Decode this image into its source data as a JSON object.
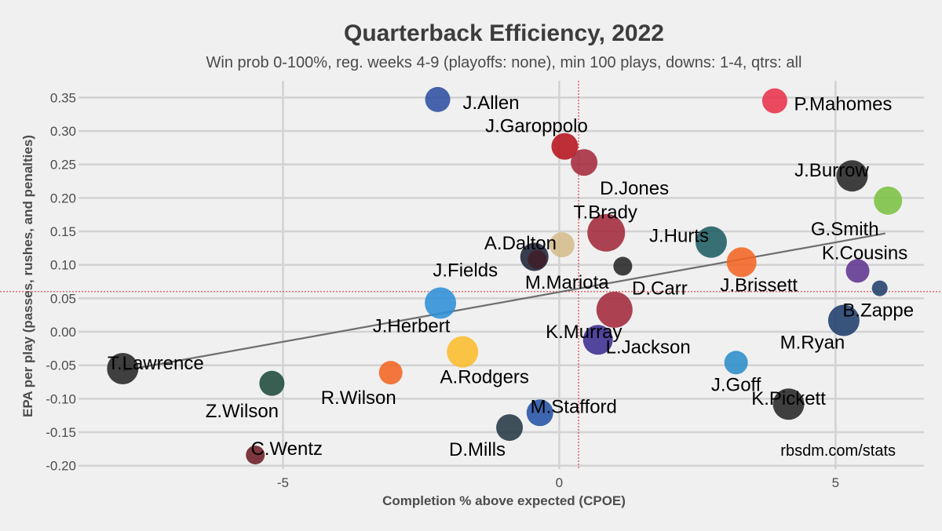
{
  "chart_data": {
    "type": "scatter",
    "title": "Quarterback Efficiency, 2022",
    "subtitle": "Win prob 0-100%, reg. weeks 4-9 (playoffs: none), min 100 plays, downs: 1-4, qtrs: all",
    "xlabel": "Completion % above expected (CPOE)",
    "ylabel": "EPA per play (passes, rushes, and penalties)",
    "credit": "rbsdm.com/stats",
    "xlim": [
      -8.7,
      6.6
    ],
    "ylim": [
      -0.205,
      0.375
    ],
    "x_ticks": [
      -5,
      0,
      5
    ],
    "x_tick_labels": [
      "-5",
      "0",
      "5"
    ],
    "y_ticks": [
      -0.2,
      -0.15,
      -0.1,
      -0.05,
      0.0,
      0.05,
      0.1,
      0.15,
      0.2,
      0.25,
      0.3,
      0.35
    ],
    "y_tick_labels": [
      "-0.20",
      "-0.15",
      "-0.10",
      "-0.05",
      "0.00",
      "0.05",
      "0.10",
      "0.15",
      "0.20",
      "0.25",
      "0.30",
      "0.35"
    ],
    "grid": true,
    "mean_x": 0.35,
    "mean_y": 0.06,
    "trendline": {
      "x": [
        -7.9,
        5.9
      ],
      "y": [
        -0.058,
        0.147
      ]
    },
    "points": [
      {
        "name": "J.Allen",
        "x": -2.2,
        "y": 0.347,
        "r": 16,
        "color": "#2d4ea1"
      },
      {
        "name": "P.Mahomes",
        "x": 3.9,
        "y": 0.345,
        "r": 16,
        "color": "#e8314b"
      },
      {
        "name": "J.Garoppolo",
        "x": 0.1,
        "y": 0.277,
        "r": 17,
        "color": "#b5121b"
      },
      {
        "name": "D.Jones",
        "x": 0.45,
        "y": 0.253,
        "r": 17,
        "color": "#a52a3d"
      },
      {
        "name": "J.Burrow",
        "x": 5.3,
        "y": 0.233,
        "r": 20,
        "color": "#262626"
      },
      {
        "name": "G.Smith",
        "x": 5.95,
        "y": 0.196,
        "r": 18,
        "color": "#7bc043"
      },
      {
        "name": "T.Brady",
        "x": 0.85,
        "y": 0.148,
        "r": 24,
        "color": "#a0283a"
      },
      {
        "name": "J.Hurts",
        "x": 2.75,
        "y": 0.134,
        "r": 20,
        "color": "#1e5c63"
      },
      {
        "name": "A.Dalton",
        "x": 0.05,
        "y": 0.13,
        "r": 16,
        "color": "#d4bc8c"
      },
      {
        "name": "J.Fields",
        "x": -0.45,
        "y": 0.112,
        "r": 18,
        "color": "#1e2238"
      },
      {
        "name": "M.Mariota",
        "x": -0.4,
        "y": 0.108,
        "r": 12,
        "color": "#3d1f2a"
      },
      {
        "name": "J.Brissett",
        "x": 3.3,
        "y": 0.104,
        "r": 19,
        "color": "#f26522"
      },
      {
        "name": "D.Carr",
        "x": 1.15,
        "y": 0.098,
        "r": 12,
        "color": "#262626"
      },
      {
        "name": "K.Cousins",
        "x": 5.4,
        "y": 0.091,
        "r": 15,
        "color": "#5f3390"
      },
      {
        "name": "B.Zappe",
        "x": 5.8,
        "y": 0.065,
        "r": 10,
        "color": "#21406b"
      },
      {
        "name": "J.Herbert",
        "x": -2.15,
        "y": 0.043,
        "r": 20,
        "color": "#2d8fd6"
      },
      {
        "name": "K.Murray",
        "x": 1.0,
        "y": 0.033,
        "r": 23,
        "color": "#a0283a"
      },
      {
        "name": "M.Ryan",
        "x": 5.15,
        "y": 0.017,
        "r": 20,
        "color": "#1e3d6b"
      },
      {
        "name": "L.Jackson",
        "x": 0.7,
        "y": -0.012,
        "r": 19,
        "color": "#3b2c8f"
      },
      {
        "name": "A.Rodgers",
        "x": -1.75,
        "y": -0.03,
        "r": 20,
        "color": "#fbbc2b"
      },
      {
        "name": "J.Goff",
        "x": 3.2,
        "y": -0.046,
        "r": 15,
        "color": "#2b8cc8"
      },
      {
        "name": "T.Lawrence",
        "x": -7.9,
        "y": -0.055,
        "r": 20,
        "color": "#262626"
      },
      {
        "name": "R.Wilson",
        "x": -3.05,
        "y": -0.061,
        "r": 15,
        "color": "#f26522"
      },
      {
        "name": "Z.Wilson",
        "x": -5.2,
        "y": -0.077,
        "r": 16,
        "color": "#1e4a3a"
      },
      {
        "name": "K.Pickett",
        "x": 4.15,
        "y": -0.108,
        "r": 20,
        "color": "#262626"
      },
      {
        "name": "M.Stafford",
        "x": -0.35,
        "y": -0.121,
        "r": 17,
        "color": "#2451a5"
      },
      {
        "name": "D.Mills",
        "x": -0.9,
        "y": -0.143,
        "r": 17,
        "color": "#243844"
      },
      {
        "name": "C.Wentz",
        "x": -5.5,
        "y": -0.184,
        "r": 12,
        "color": "#6b1e24"
      }
    ]
  }
}
